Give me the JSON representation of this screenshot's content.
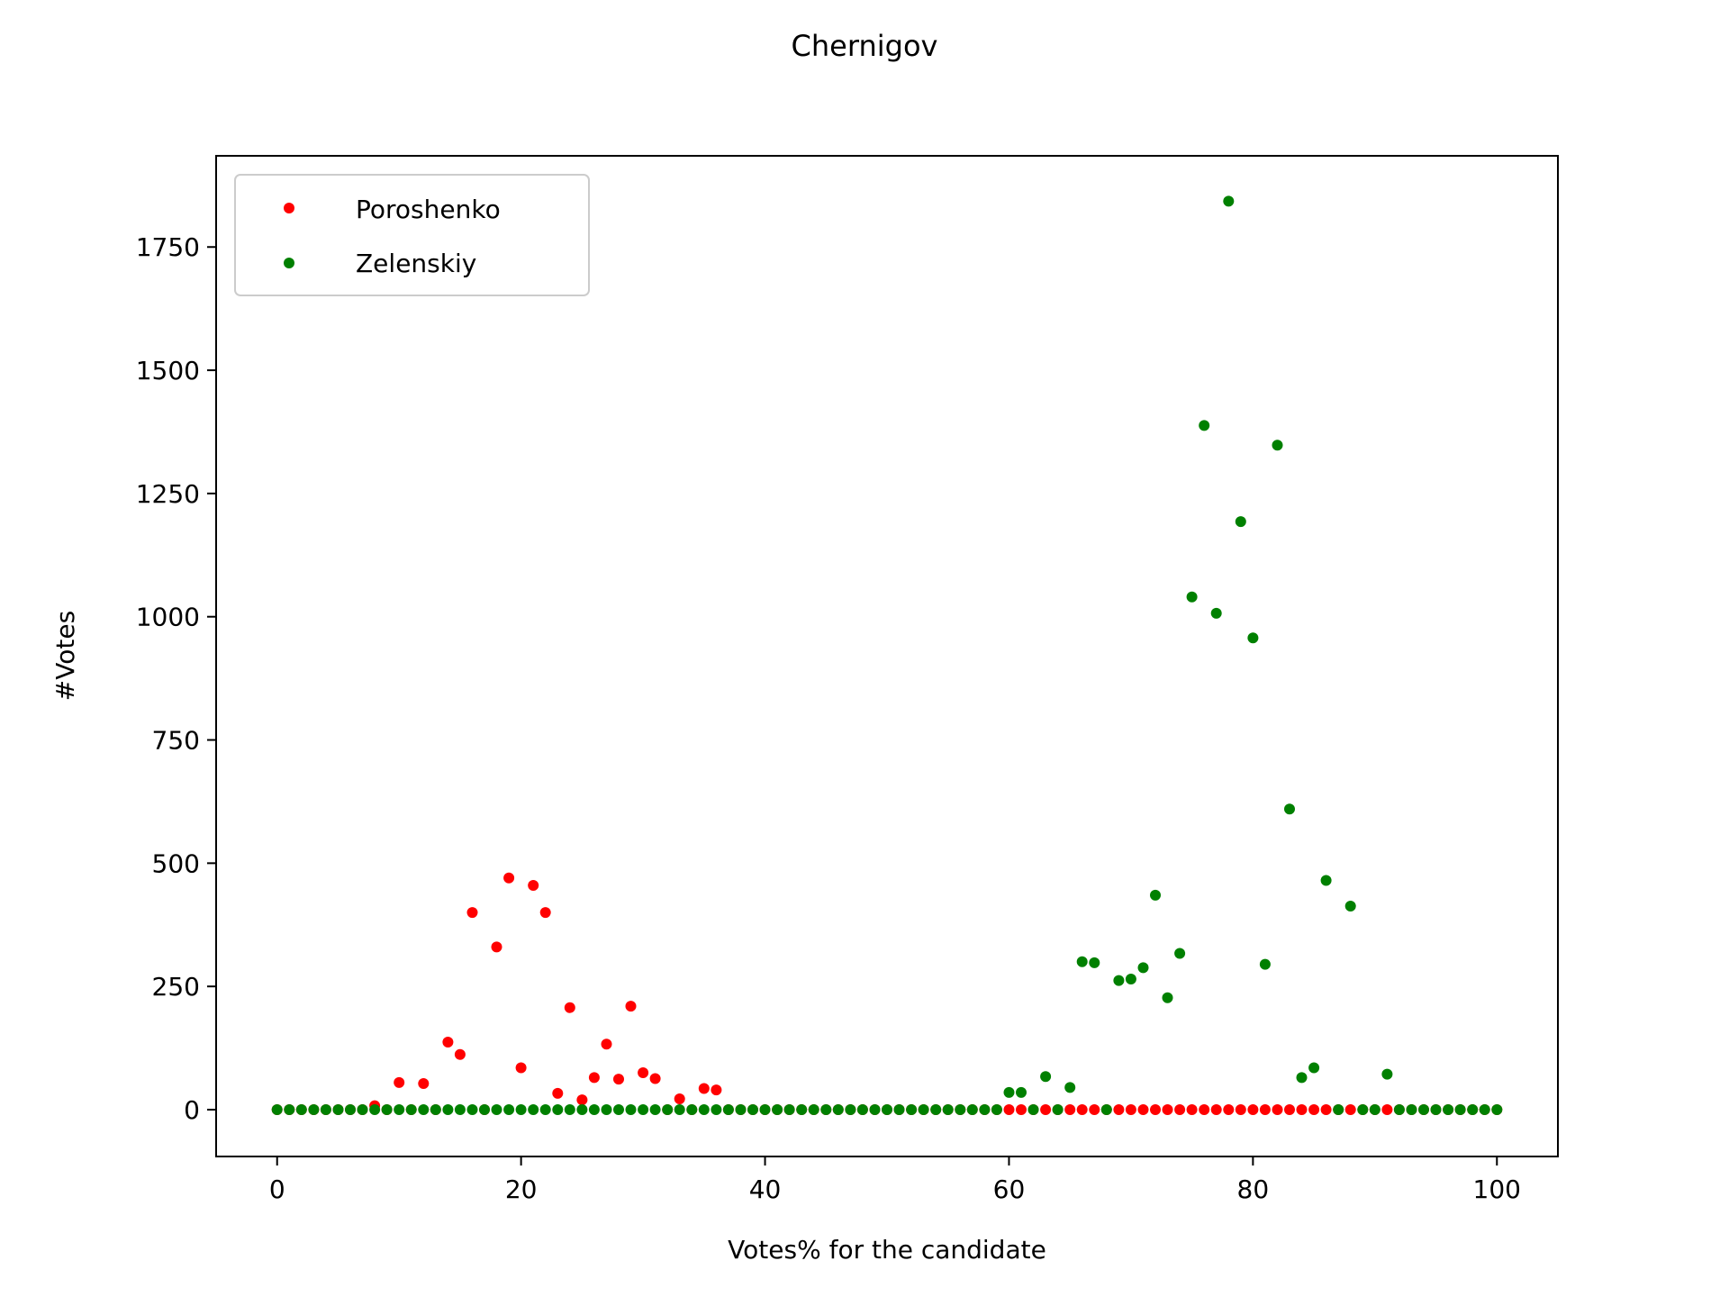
{
  "chart_data": {
    "type": "scatter",
    "title": "Chernigov",
    "xlabel": "Votes% for the candidate",
    "ylabel": "#Votes",
    "xlim": [
      -5,
      105
    ],
    "ylim": [
      -95,
      1935
    ],
    "xticks": [
      0,
      20,
      40,
      60,
      80,
      100
    ],
    "yticks": [
      0,
      250,
      500,
      750,
      1000,
      1250,
      1500,
      1750
    ],
    "legend_position": "top-left",
    "grid": false,
    "series": [
      {
        "name": "Poroshenko",
        "color": "#ff0000",
        "points": [
          [
            0,
            0
          ],
          [
            1,
            0
          ],
          [
            2,
            0
          ],
          [
            3,
            0
          ],
          [
            4,
            0
          ],
          [
            5,
            0
          ],
          [
            6,
            0
          ],
          [
            7,
            0
          ],
          [
            8,
            8
          ],
          [
            9,
            0
          ],
          [
            10,
            55
          ],
          [
            11,
            0
          ],
          [
            12,
            53
          ],
          [
            13,
            0
          ],
          [
            14,
            137
          ],
          [
            15,
            112
          ],
          [
            16,
            400
          ],
          [
            17,
            0
          ],
          [
            18,
            330
          ],
          [
            19,
            470
          ],
          [
            20,
            85
          ],
          [
            21,
            455
          ],
          [
            22,
            400
          ],
          [
            23,
            33
          ],
          [
            24,
            207
          ],
          [
            25,
            20
          ],
          [
            26,
            65
          ],
          [
            27,
            133
          ],
          [
            28,
            62
          ],
          [
            29,
            210
          ],
          [
            30,
            75
          ],
          [
            31,
            63
          ],
          [
            32,
            0
          ],
          [
            33,
            22
          ],
          [
            34,
            0
          ],
          [
            35,
            43
          ],
          [
            36,
            40
          ],
          [
            37,
            0
          ],
          [
            38,
            0
          ],
          [
            39,
            0
          ],
          [
            40,
            0
          ],
          [
            41,
            0
          ],
          [
            42,
            0
          ],
          [
            43,
            0
          ],
          [
            44,
            0
          ],
          [
            45,
            0
          ],
          [
            46,
            0
          ],
          [
            47,
            0
          ],
          [
            48,
            0
          ],
          [
            49,
            0
          ],
          [
            50,
            0
          ],
          [
            51,
            0
          ],
          [
            52,
            0
          ],
          [
            53,
            0
          ],
          [
            54,
            0
          ],
          [
            55,
            0
          ],
          [
            56,
            0
          ],
          [
            57,
            0
          ],
          [
            58,
            0
          ],
          [
            59,
            0
          ],
          [
            60,
            0
          ],
          [
            61,
            0
          ],
          [
            62,
            0
          ],
          [
            63,
            0
          ],
          [
            64,
            0
          ],
          [
            65,
            0
          ],
          [
            66,
            0
          ],
          [
            67,
            0
          ],
          [
            68,
            0
          ],
          [
            69,
            0
          ],
          [
            70,
            0
          ],
          [
            71,
            0
          ],
          [
            72,
            0
          ],
          [
            73,
            0
          ],
          [
            74,
            0
          ],
          [
            75,
            0
          ],
          [
            76,
            0
          ],
          [
            77,
            0
          ],
          [
            78,
            0
          ],
          [
            79,
            0
          ],
          [
            80,
            0
          ],
          [
            81,
            0
          ],
          [
            82,
            0
          ],
          [
            83,
            0
          ],
          [
            84,
            0
          ],
          [
            85,
            0
          ],
          [
            86,
            0
          ],
          [
            87,
            0
          ],
          [
            88,
            0
          ],
          [
            89,
            0
          ],
          [
            90,
            0
          ],
          [
            91,
            0
          ],
          [
            92,
            0
          ],
          [
            93,
            0
          ],
          [
            94,
            0
          ],
          [
            95,
            0
          ],
          [
            96,
            0
          ],
          [
            97,
            0
          ],
          [
            98,
            0
          ],
          [
            99,
            0
          ],
          [
            100,
            0
          ]
        ]
      },
      {
        "name": "Zelenskiy",
        "color": "#008000",
        "points": [
          [
            0,
            0
          ],
          [
            1,
            0
          ],
          [
            2,
            0
          ],
          [
            3,
            0
          ],
          [
            4,
            0
          ],
          [
            5,
            0
          ],
          [
            6,
            0
          ],
          [
            7,
            0
          ],
          [
            8,
            0
          ],
          [
            9,
            0
          ],
          [
            10,
            0
          ],
          [
            11,
            0
          ],
          [
            12,
            0
          ],
          [
            13,
            0
          ],
          [
            14,
            0
          ],
          [
            15,
            0
          ],
          [
            16,
            0
          ],
          [
            17,
            0
          ],
          [
            18,
            0
          ],
          [
            19,
            0
          ],
          [
            20,
            0
          ],
          [
            21,
            0
          ],
          [
            22,
            0
          ],
          [
            23,
            0
          ],
          [
            24,
            0
          ],
          [
            25,
            0
          ],
          [
            26,
            0
          ],
          [
            27,
            0
          ],
          [
            28,
            0
          ],
          [
            29,
            0
          ],
          [
            30,
            0
          ],
          [
            31,
            0
          ],
          [
            32,
            0
          ],
          [
            33,
            0
          ],
          [
            34,
            0
          ],
          [
            35,
            0
          ],
          [
            36,
            0
          ],
          [
            37,
            0
          ],
          [
            38,
            0
          ],
          [
            39,
            0
          ],
          [
            40,
            0
          ],
          [
            41,
            0
          ],
          [
            42,
            0
          ],
          [
            43,
            0
          ],
          [
            44,
            0
          ],
          [
            45,
            0
          ],
          [
            46,
            0
          ],
          [
            47,
            0
          ],
          [
            48,
            0
          ],
          [
            49,
            0
          ],
          [
            50,
            0
          ],
          [
            51,
            0
          ],
          [
            52,
            0
          ],
          [
            53,
            0
          ],
          [
            54,
            0
          ],
          [
            55,
            0
          ],
          [
            56,
            0
          ],
          [
            57,
            0
          ],
          [
            58,
            0
          ],
          [
            59,
            0
          ],
          [
            60,
            35
          ],
          [
            61,
            35
          ],
          [
            62,
            0
          ],
          [
            63,
            67
          ],
          [
            64,
            0
          ],
          [
            65,
            45
          ],
          [
            66,
            300
          ],
          [
            67,
            298
          ],
          [
            68,
            0
          ],
          [
            69,
            262
          ],
          [
            70,
            265
          ],
          [
            71,
            288
          ],
          [
            72,
            435
          ],
          [
            73,
            227
          ],
          [
            74,
            317
          ],
          [
            75,
            1040
          ],
          [
            76,
            1388
          ],
          [
            77,
            1007
          ],
          [
            78,
            1843
          ],
          [
            79,
            1193
          ],
          [
            80,
            957
          ],
          [
            81,
            295
          ],
          [
            82,
            1348
          ],
          [
            83,
            610
          ],
          [
            84,
            65
          ],
          [
            85,
            85
          ],
          [
            86,
            465
          ],
          [
            87,
            0
          ],
          [
            88,
            413
          ],
          [
            89,
            0
          ],
          [
            90,
            0
          ],
          [
            91,
            72
          ],
          [
            92,
            0
          ],
          [
            93,
            0
          ],
          [
            94,
            0
          ],
          [
            95,
            0
          ],
          [
            96,
            0
          ],
          [
            97,
            0
          ],
          [
            98,
            0
          ],
          [
            99,
            0
          ],
          [
            100,
            0
          ]
        ]
      }
    ]
  }
}
